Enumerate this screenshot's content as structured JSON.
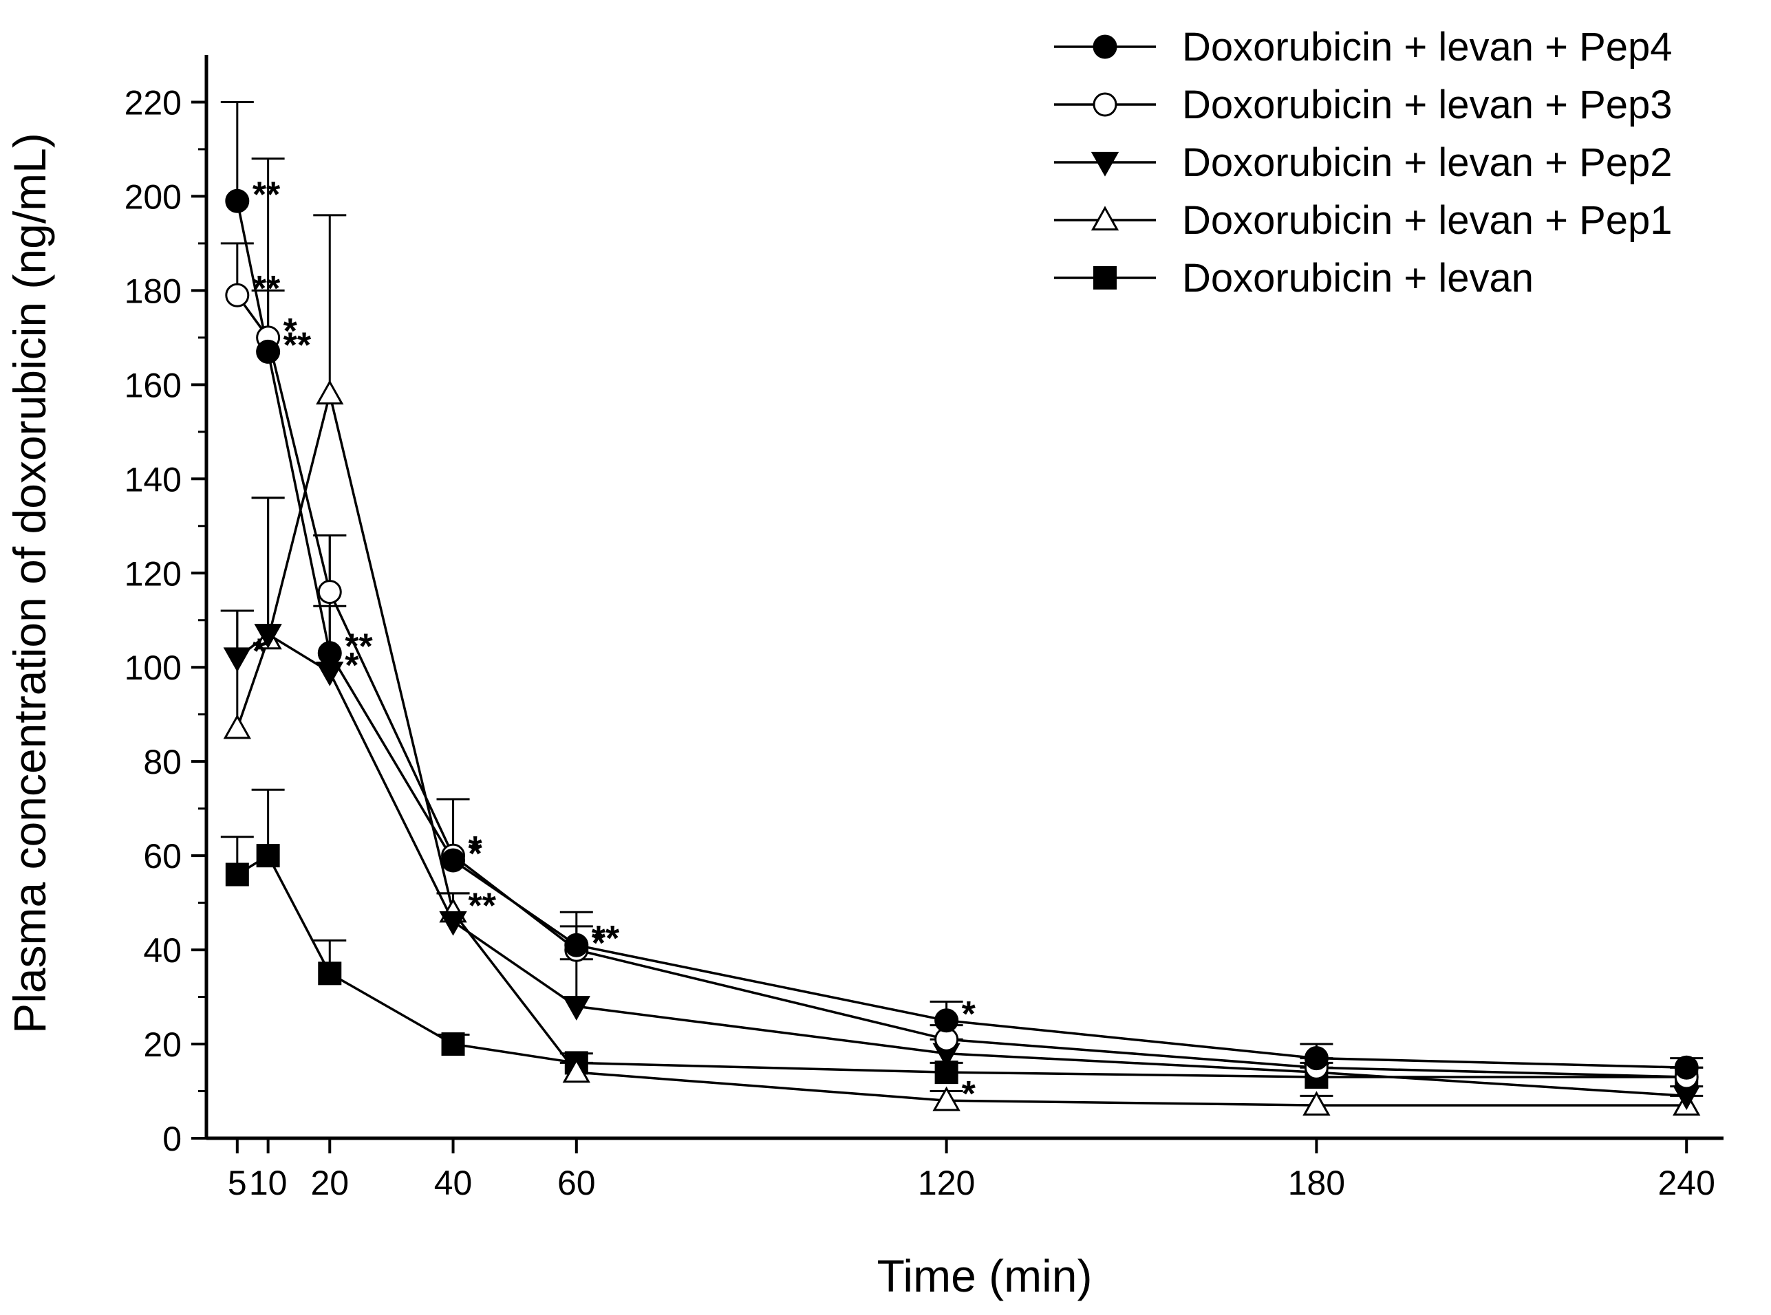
{
  "chart_data": {
    "type": "line",
    "title": "",
    "xlabel": "Time (min)",
    "ylabel": "Plasma concentration of doxorubicin (ng/mL)",
    "x": [
      5,
      10,
      20,
      40,
      60,
      120,
      180,
      240
    ],
    "x_tick_labels": [
      "5",
      "10",
      "20",
      "40",
      "60",
      "120",
      "180",
      "240"
    ],
    "xlim": [
      0,
      246
    ],
    "ylim": [
      0,
      230
    ],
    "y_ticks": [
      0,
      20,
      40,
      60,
      80,
      100,
      120,
      140,
      160,
      180,
      200,
      220
    ],
    "y_tick_labels": [
      "0",
      "20",
      "40",
      "60",
      "80",
      "100",
      "120",
      "140",
      "160",
      "180",
      "200",
      "220"
    ],
    "legend_position": "top-right",
    "grid": false,
    "series": [
      {
        "name": "Doxorubicin + levan + Pep4",
        "marker": "circle-filled",
        "values": [
          199,
          167,
          103,
          59,
          41,
          25,
          17,
          15
        ],
        "errors": [
          21,
          41,
          25,
          13,
          7,
          4,
          3,
          2
        ],
        "sig": [
          "**",
          "**",
          "**",
          "*",
          "**",
          "*",
          "",
          ""
        ]
      },
      {
        "name": "Doxorubicin + levan + Pep3",
        "marker": "circle-open",
        "values": [
          179,
          170,
          116,
          60,
          40,
          21,
          15,
          13
        ],
        "errors": [
          11,
          10,
          12,
          12,
          5,
          3,
          2,
          2
        ],
        "sig": [
          "**",
          "*",
          "",
          "*",
          "*",
          "",
          "",
          ""
        ]
      },
      {
        "name": "Doxorubicin + levan + Pep2",
        "marker": "triangle-down-filled",
        "values": [
          102,
          107,
          99,
          46,
          28,
          18,
          14,
          9
        ],
        "errors": [
          10,
          29,
          14,
          6,
          10,
          3,
          2,
          2
        ],
        "sig": [
          "*",
          "",
          "*",
          "",
          "",
          "",
          "",
          ""
        ]
      },
      {
        "name": "Doxorubicin + levan + Pep1",
        "marker": "triangle-up-open",
        "values": [
          87,
          106,
          158,
          48,
          14,
          8,
          7,
          7
        ],
        "errors": [
          25,
          30,
          38,
          4,
          2,
          2,
          2,
          2
        ],
        "sig": [
          "",
          "",
          "",
          "**",
          "",
          "*",
          "",
          ""
        ]
      },
      {
        "name": "Doxorubicin + levan",
        "marker": "square-filled",
        "values": [
          56,
          60,
          35,
          20,
          16,
          14,
          13,
          13
        ],
        "errors": [
          8,
          14,
          7,
          2,
          2,
          2,
          2,
          2
        ],
        "sig": [
          "",
          "",
          "",
          "",
          "",
          "",
          "",
          ""
        ]
      }
    ]
  }
}
